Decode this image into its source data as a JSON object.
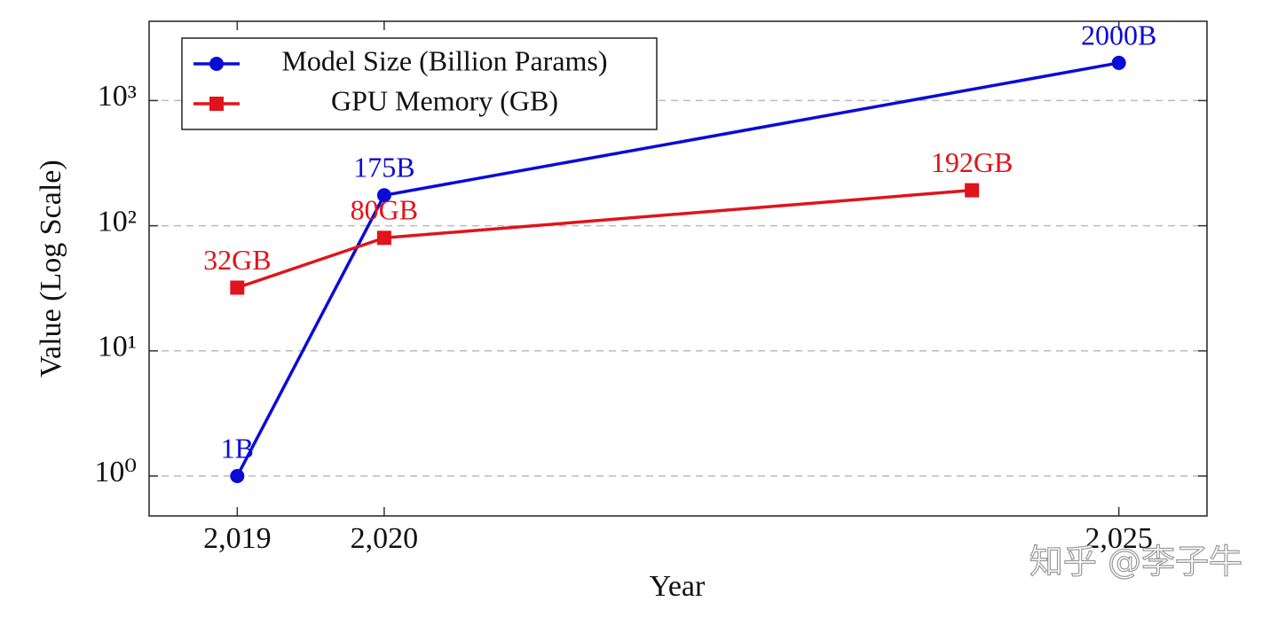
{
  "chart_data": {
    "type": "line",
    "x_label": "Year",
    "y_label": "Value (Log Scale)",
    "xlim": [
      2018.4,
      2025.6
    ],
    "xticks": [
      {
        "value": 2019,
        "label": "2,019"
      },
      {
        "value": 2020,
        "label": "2,020"
      },
      {
        "value": 2025,
        "label": "2,025"
      }
    ],
    "ylim": [
      0.48,
      4300
    ],
    "log_y": true,
    "yticks": [
      {
        "value": 1,
        "label": "10⁰"
      },
      {
        "value": 10,
        "label": "10¹"
      },
      {
        "value": 100,
        "label": "10²"
      },
      {
        "value": 1000,
        "label": "10³"
      }
    ],
    "grid": true,
    "legend": "upper left",
    "series": [
      {
        "name": "Model Size (Billion Params)",
        "color": "#0b0bd8",
        "marker": "circle",
        "x": [
          2019,
          2020,
          2025
        ],
        "values": [
          1,
          175,
          2000
        ],
        "value_labels": [
          "1B",
          "175B",
          "2000B"
        ]
      },
      {
        "name": "GPU Memory (GB)",
        "color": "#e0141a",
        "marker": "square",
        "x": [
          2019,
          2020,
          2024
        ],
        "values": [
          32,
          80,
          192
        ],
        "value_labels": [
          "32GB",
          "80GB",
          "192GB"
        ]
      }
    ],
    "watermark": "知乎 @李子牛"
  }
}
